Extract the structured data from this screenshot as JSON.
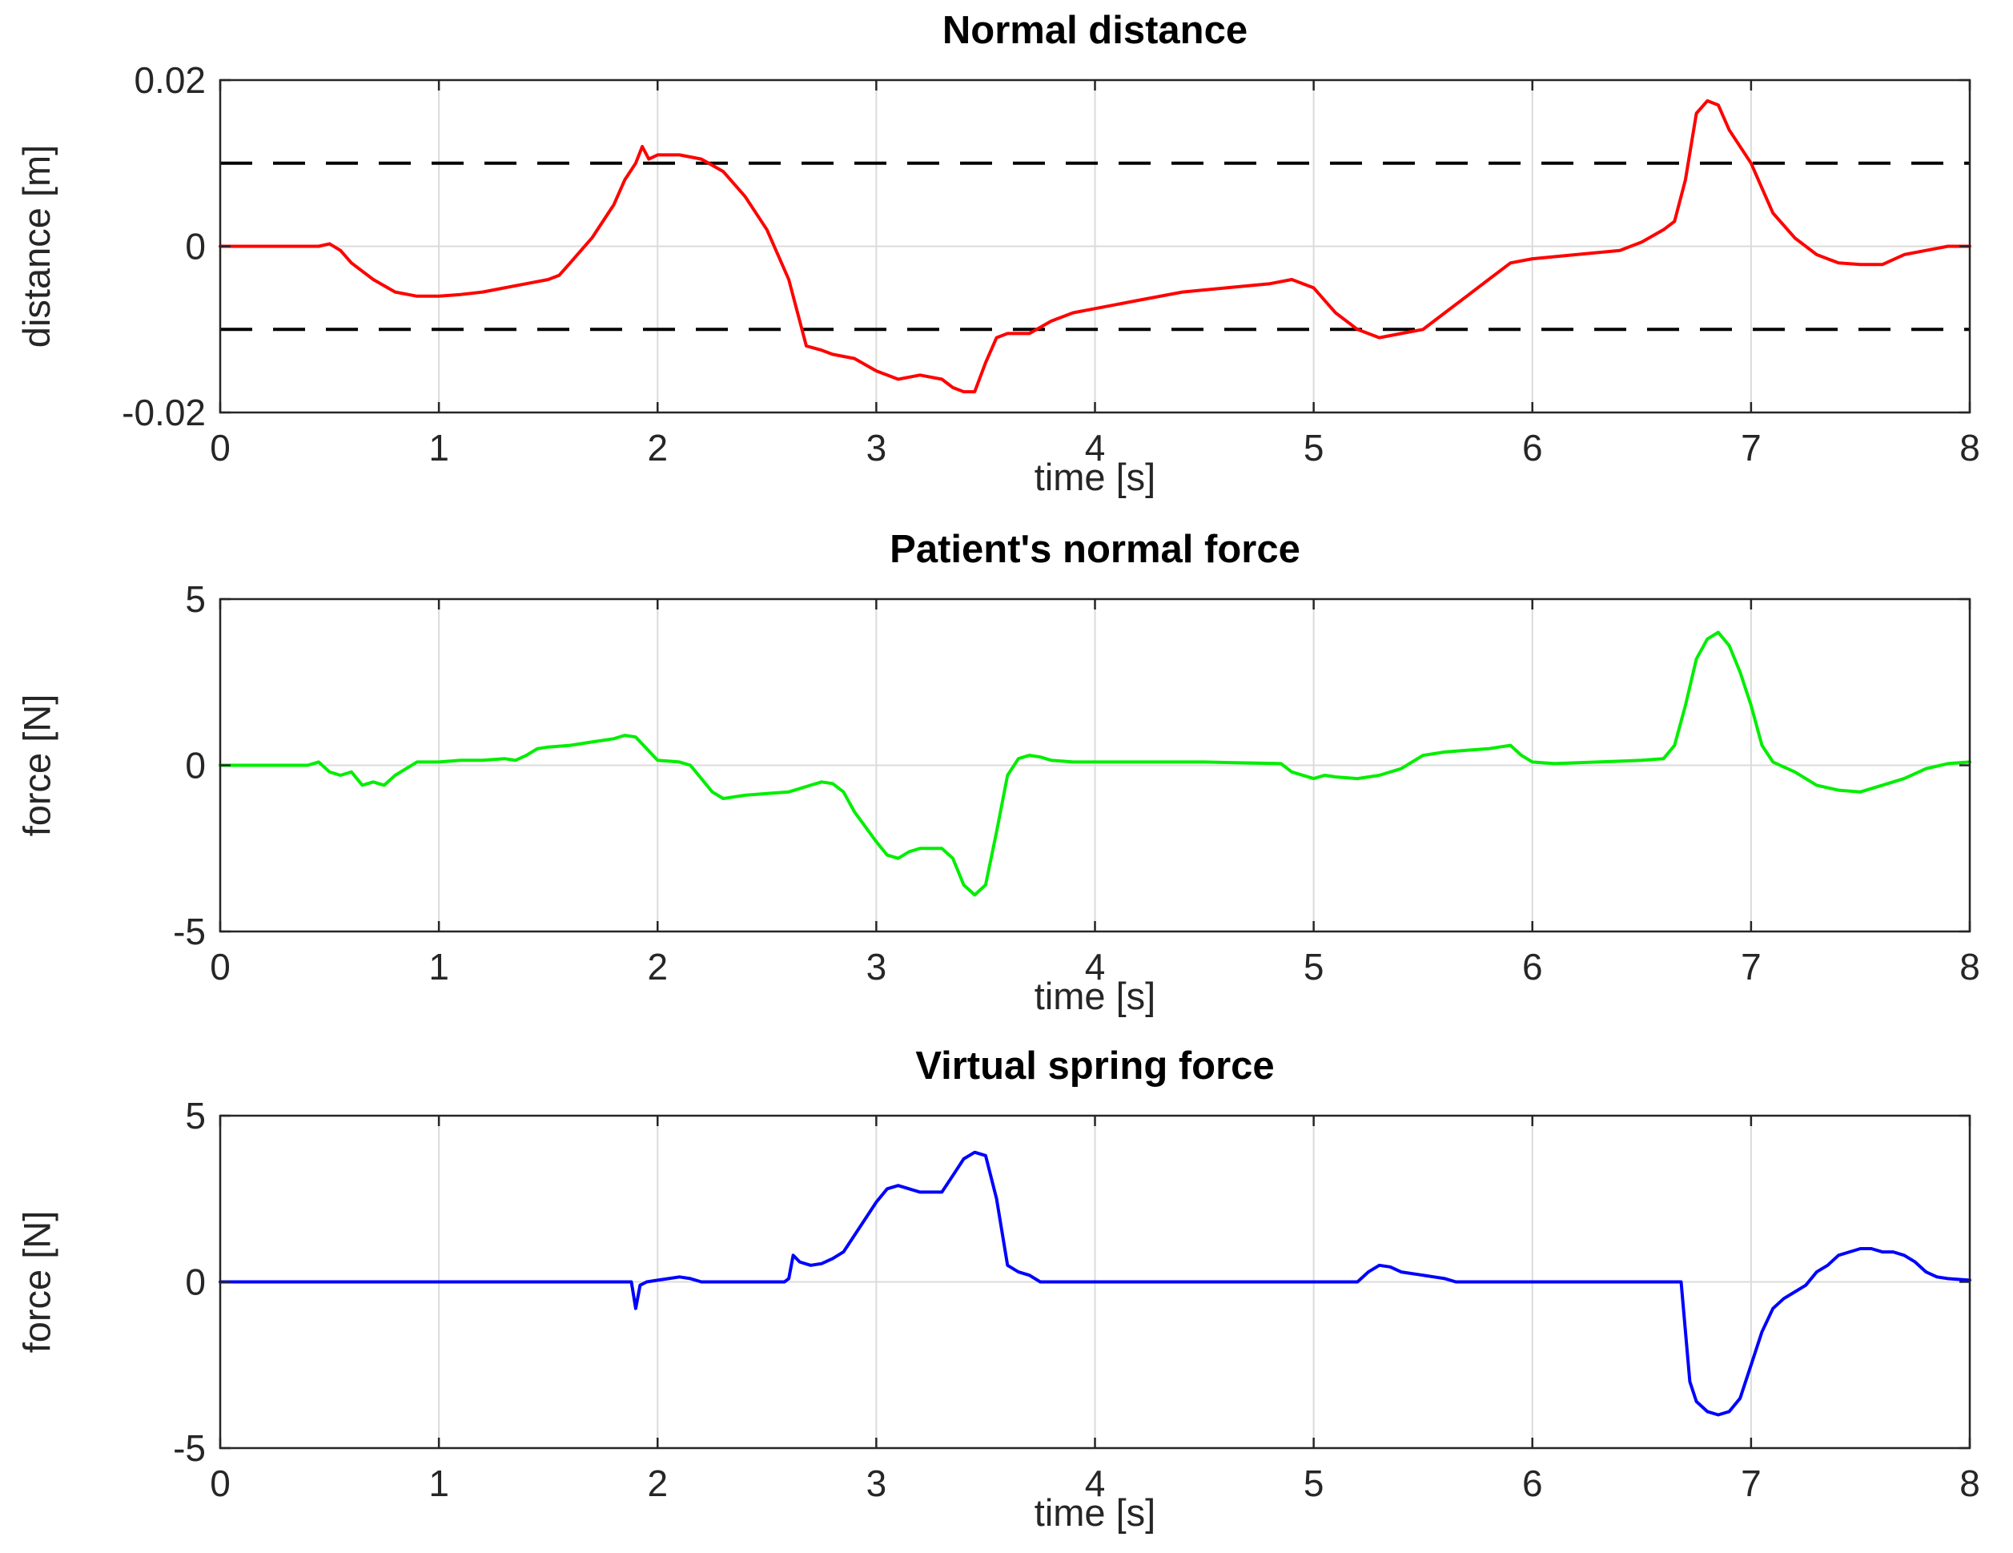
{
  "figure": {
    "background": "#ffffff",
    "grid_color": "#dbdbdb",
    "axes_color": "#262626"
  },
  "chart_data": [
    {
      "type": "line",
      "title": "Normal distance",
      "xlabel": "time [s]",
      "ylabel": "distance [m]",
      "xlim": [
        0,
        8
      ],
      "ylim": [
        -0.02,
        0.02
      ],
      "xticks": [
        0,
        1,
        2,
        3,
        4,
        5,
        6,
        7,
        8
      ],
      "xtick_labels": [
        "0",
        "1",
        "2",
        "3",
        "4",
        "5",
        "6",
        "7",
        "8"
      ],
      "yticks": [
        -0.02,
        0,
        0.02
      ],
      "ytick_labels": [
        "-0.02",
        "0",
        "0.02"
      ],
      "color": "#ff0000",
      "grid": true,
      "legend": "none",
      "threshold_lines": {
        "style": "dashed",
        "color": "#000000",
        "values": [
          0.01,
          -0.01
        ]
      },
      "x": [
        0,
        0.3,
        0.45,
        0.5,
        0.55,
        0.6,
        0.7,
        0.8,
        0.9,
        1.0,
        1.1,
        1.2,
        1.3,
        1.4,
        1.5,
        1.55,
        1.6,
        1.7,
        1.8,
        1.85,
        1.9,
        1.93,
        1.96,
        2.0,
        2.1,
        2.2,
        2.3,
        2.4,
        2.5,
        2.6,
        2.65,
        2.68,
        2.75,
        2.8,
        2.9,
        3.0,
        3.05,
        3.1,
        3.2,
        3.3,
        3.35,
        3.4,
        3.45,
        3.5,
        3.55,
        3.6,
        3.7,
        3.8,
        3.9,
        4.0,
        4.2,
        4.4,
        4.6,
        4.8,
        4.9,
        5.0,
        5.1,
        5.2,
        5.3,
        5.4,
        5.5,
        5.6,
        5.7,
        5.8,
        5.9,
        6.0,
        6.2,
        6.4,
        6.5,
        6.6,
        6.65,
        6.7,
        6.75,
        6.8,
        6.85,
        6.9,
        7.0,
        7.05,
        7.1,
        7.2,
        7.3,
        7.4,
        7.5,
        7.6,
        7.7,
        7.8,
        7.9,
        8.0
      ],
      "y": [
        0,
        0,
        0,
        0.0003,
        -0.0005,
        -0.002,
        -0.004,
        -0.0055,
        -0.006,
        -0.006,
        -0.0058,
        -0.0055,
        -0.005,
        -0.0045,
        -0.004,
        -0.0035,
        -0.002,
        0.001,
        0.005,
        0.008,
        0.01,
        0.012,
        0.0105,
        0.011,
        0.011,
        0.0105,
        0.009,
        0.006,
        0.002,
        -0.004,
        -0.009,
        -0.012,
        -0.0125,
        -0.013,
        -0.0135,
        -0.015,
        -0.0155,
        -0.016,
        -0.0155,
        -0.016,
        -0.017,
        -0.0175,
        -0.0175,
        -0.014,
        -0.011,
        -0.0105,
        -0.0105,
        -0.009,
        -0.008,
        -0.0075,
        -0.0065,
        -0.0055,
        -0.005,
        -0.0045,
        -0.004,
        -0.005,
        -0.008,
        -0.01,
        -0.011,
        -0.0105,
        -0.01,
        -0.008,
        -0.006,
        -0.004,
        -0.002,
        -0.0015,
        -0.001,
        -0.0005,
        0.0005,
        0.002,
        0.003,
        0.008,
        0.016,
        0.0175,
        0.017,
        0.014,
        0.01,
        0.007,
        0.004,
        0.001,
        -0.001,
        -0.002,
        -0.0022,
        -0.0022,
        -0.001,
        -0.0005,
        0,
        0
      ]
    },
    {
      "type": "line",
      "title": "Patient's normal force",
      "xlabel": "time [s]",
      "ylabel": "force [N]",
      "xlim": [
        0,
        8
      ],
      "ylim": [
        -5,
        5
      ],
      "xticks": [
        0,
        1,
        2,
        3,
        4,
        5,
        6,
        7,
        8
      ],
      "xtick_labels": [
        "0",
        "1",
        "2",
        "3",
        "4",
        "5",
        "6",
        "7",
        "8"
      ],
      "yticks": [
        -5,
        0,
        5
      ],
      "ytick_labels": [
        "-5",
        "0",
        "5"
      ],
      "color": "#00ee00",
      "grid": true,
      "legend": "none",
      "x": [
        0,
        0.4,
        0.45,
        0.5,
        0.55,
        0.6,
        0.65,
        0.7,
        0.75,
        0.8,
        0.85,
        0.9,
        1.0,
        1.1,
        1.2,
        1.3,
        1.35,
        1.4,
        1.45,
        1.5,
        1.6,
        1.7,
        1.75,
        1.8,
        1.85,
        1.9,
        1.95,
        2.0,
        2.1,
        2.15,
        2.2,
        2.25,
        2.3,
        2.4,
        2.5,
        2.6,
        2.65,
        2.7,
        2.75,
        2.8,
        2.85,
        2.9,
        3.0,
        3.05,
        3.1,
        3.15,
        3.2,
        3.3,
        3.35,
        3.4,
        3.45,
        3.5,
        3.55,
        3.6,
        3.65,
        3.7,
        3.75,
        3.8,
        3.9,
        4.0,
        4.5,
        4.85,
        4.9,
        5.0,
        5.05,
        5.1,
        5.2,
        5.3,
        5.4,
        5.5,
        5.6,
        5.7,
        5.8,
        5.85,
        5.9,
        5.95,
        6.0,
        6.1,
        6.3,
        6.5,
        6.6,
        6.65,
        6.7,
        6.75,
        6.8,
        6.85,
        6.9,
        6.95,
        7.0,
        7.05,
        7.1,
        7.2,
        7.3,
        7.4,
        7.5,
        7.6,
        7.7,
        7.8,
        7.9,
        8.0
      ],
      "y": [
        0,
        0,
        0.1,
        -0.2,
        -0.3,
        -0.2,
        -0.6,
        -0.5,
        -0.6,
        -0.3,
        -0.1,
        0.1,
        0.1,
        0.15,
        0.15,
        0.2,
        0.15,
        0.3,
        0.5,
        0.55,
        0.6,
        0.7,
        0.75,
        0.8,
        0.9,
        0.85,
        0.5,
        0.15,
        0.1,
        0,
        -0.4,
        -0.8,
        -1.0,
        -0.9,
        -0.85,
        -0.8,
        -0.7,
        -0.6,
        -0.5,
        -0.55,
        -0.8,
        -1.4,
        -2.3,
        -2.7,
        -2.8,
        -2.6,
        -2.5,
        -2.5,
        -2.8,
        -3.6,
        -3.9,
        -3.6,
        -2.0,
        -0.3,
        0.2,
        0.3,
        0.25,
        0.15,
        0.1,
        0.1,
        0.1,
        0.05,
        -0.2,
        -0.4,
        -0.3,
        -0.35,
        -0.4,
        -0.3,
        -0.1,
        0.3,
        0.4,
        0.45,
        0.5,
        0.55,
        0.6,
        0.3,
        0.1,
        0.05,
        0.1,
        0.15,
        0.2,
        0.6,
        1.8,
        3.2,
        3.8,
        4.0,
        3.6,
        2.8,
        1.8,
        0.6,
        0.1,
        -0.2,
        -0.6,
        -0.75,
        -0.8,
        -0.6,
        -0.4,
        -0.1,
        0.05,
        0.1
      ]
    },
    {
      "type": "line",
      "title": "Virtual spring force",
      "xlabel": "time [s]",
      "ylabel": "force [N]",
      "xlim": [
        0,
        8
      ],
      "ylim": [
        -5,
        5
      ],
      "xticks": [
        0,
        1,
        2,
        3,
        4,
        5,
        6,
        7,
        8
      ],
      "xtick_labels": [
        "0",
        "1",
        "2",
        "3",
        "4",
        "5",
        "6",
        "7",
        "8"
      ],
      "yticks": [
        -5,
        0,
        5
      ],
      "ytick_labels": [
        "-5",
        "0",
        "5"
      ],
      "color": "#0000ff",
      "grid": true,
      "legend": "none",
      "x": [
        0,
        1.0,
        1.85,
        1.88,
        1.9,
        1.92,
        1.95,
        2.0,
        2.05,
        2.1,
        2.15,
        2.2,
        2.4,
        2.58,
        2.6,
        2.62,
        2.65,
        2.7,
        2.75,
        2.8,
        2.85,
        2.9,
        3.0,
        3.05,
        3.1,
        3.15,
        3.2,
        3.3,
        3.35,
        3.4,
        3.45,
        3.5,
        3.55,
        3.6,
        3.65,
        3.7,
        3.75,
        4.0,
        4.5,
        5.0,
        5.2,
        5.25,
        5.3,
        5.35,
        5.4,
        5.5,
        5.55,
        5.6,
        5.65,
        6.0,
        6.5,
        6.68,
        6.72,
        6.75,
        6.8,
        6.85,
        6.9,
        6.95,
        7.0,
        7.05,
        7.1,
        7.15,
        7.2,
        7.25,
        7.3,
        7.35,
        7.4,
        7.45,
        7.5,
        7.55,
        7.6,
        7.65,
        7.7,
        7.75,
        7.8,
        7.85,
        7.9,
        8.0
      ],
      "y": [
        0,
        0,
        0,
        0,
        -0.8,
        -0.1,
        0,
        0.05,
        0.1,
        0.15,
        0.1,
        0,
        0,
        0,
        0.1,
        0.8,
        0.6,
        0.5,
        0.55,
        0.7,
        0.9,
        1.4,
        2.4,
        2.8,
        2.9,
        2.8,
        2.7,
        2.7,
        3.2,
        3.7,
        3.9,
        3.8,
        2.5,
        0.5,
        0.3,
        0.2,
        0,
        0,
        0,
        0,
        0,
        0.3,
        0.5,
        0.45,
        0.3,
        0.2,
        0.15,
        0.1,
        0,
        0,
        0,
        0,
        -3.0,
        -3.6,
        -3.9,
        -4.0,
        -3.9,
        -3.5,
        -2.5,
        -1.5,
        -0.8,
        -0.5,
        -0.3,
        -0.1,
        0.3,
        0.5,
        0.8,
        0.9,
        1.0,
        1.0,
        0.9,
        0.9,
        0.8,
        0.6,
        0.3,
        0.15,
        0.1,
        0.05
      ]
    }
  ]
}
